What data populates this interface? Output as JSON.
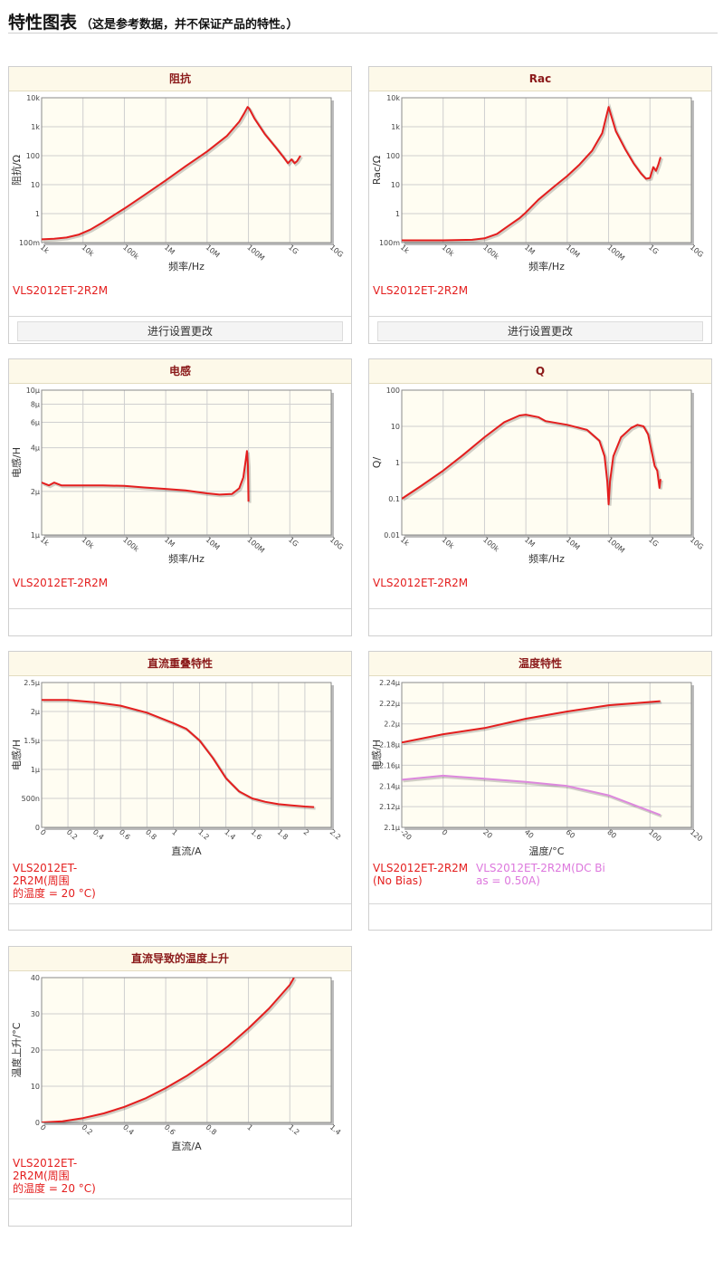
{
  "page": {
    "title": "特性图表",
    "subtitle": "（这是参考数据，并不保证产品的特性。）",
    "settings_label": "进行设置更改"
  },
  "colors": {
    "series_red": "#e41e1e",
    "series_pink": "#dd88dd",
    "plot_bg": "#fffdf2",
    "panel_title": "#8b1a1a",
    "panel_title_bg": "#fdf9e9"
  },
  "chart_data": [
    {
      "id": "impedance",
      "type": "line",
      "title": "阻抗",
      "xlabel": "频率/Hz",
      "ylabel": "阻抗/Ω",
      "x_scale": "log",
      "y_scale": "log",
      "xlim": [
        1000,
        10000000000
      ],
      "ylim": [
        0.1,
        10000
      ],
      "x_ticks": [
        {
          "v": 1000,
          "label": "1k"
        },
        {
          "v": 10000,
          "label": "10k"
        },
        {
          "v": 100000,
          "label": "100k"
        },
        {
          "v": 1000000,
          "label": "1M"
        },
        {
          "v": 10000000,
          "label": "10M"
        },
        {
          "v": 100000000,
          "label": "100M"
        },
        {
          "v": 1000000000,
          "label": "1G"
        },
        {
          "v": 10000000000,
          "label": "10G"
        }
      ],
      "y_ticks": [
        {
          "v": 0.1,
          "label": "100m"
        },
        {
          "v": 1,
          "label": "1"
        },
        {
          "v": 10,
          "label": "10"
        },
        {
          "v": 100,
          "label": "100"
        },
        {
          "v": 1000,
          "label": "1k"
        },
        {
          "v": 10000,
          "label": "10k"
        }
      ],
      "grid": true,
      "series": [
        {
          "name": "VLS2012ET-2R2M",
          "color": "#e41e1e",
          "x": [
            1000,
            2000,
            4000,
            8000,
            15000,
            30000,
            60000,
            100000,
            300000,
            1000000,
            3000000,
            10000000,
            30000000,
            60000000,
            80000000,
            95000000,
            105000000,
            140000000,
            250000000,
            450000000,
            700000000,
            900000000,
            1100000000,
            1300000000,
            1500000000,
            1800000000
          ],
          "y": [
            0.13,
            0.135,
            0.15,
            0.19,
            0.28,
            0.5,
            0.95,
            1.5,
            4.3,
            14,
            43,
            140,
            480,
            1500,
            3000,
            4800,
            4200,
            1900,
            550,
            200,
            90,
            55,
            75,
            55,
            65,
            100
          ]
        }
      ],
      "legend": [
        "VLS2012ET-2R2M"
      ],
      "has_settings": true
    },
    {
      "id": "rac",
      "type": "line",
      "title": "Rac",
      "xlabel": "频率/Hz",
      "ylabel": "Rac/Ω",
      "x_scale": "log",
      "y_scale": "log",
      "xlim": [
        1000,
        10000000000
      ],
      "ylim": [
        0.1,
        10000
      ],
      "x_ticks": [
        {
          "v": 1000,
          "label": "1k"
        },
        {
          "v": 10000,
          "label": "10k"
        },
        {
          "v": 100000,
          "label": "100k"
        },
        {
          "v": 1000000,
          "label": "1M"
        },
        {
          "v": 10000000,
          "label": "10M"
        },
        {
          "v": 100000000,
          "label": "100M"
        },
        {
          "v": 1000000000,
          "label": "1G"
        },
        {
          "v": 10000000000,
          "label": "10G"
        }
      ],
      "y_ticks": [
        {
          "v": 0.1,
          "label": "100m"
        },
        {
          "v": 1,
          "label": "1"
        },
        {
          "v": 10,
          "label": "10"
        },
        {
          "v": 100,
          "label": "100"
        },
        {
          "v": 1000,
          "label": "1k"
        },
        {
          "v": 10000,
          "label": "10k"
        }
      ],
      "grid": true,
      "series": [
        {
          "name": "VLS2012ET-2R2M",
          "color": "#e41e1e",
          "x": [
            1000,
            10000,
            50000,
            100000,
            200000,
            400000,
            700000,
            1000000,
            2000000,
            5000000,
            10000000,
            20000000,
            40000000,
            70000000,
            90000000,
            100000000,
            110000000,
            150000000,
            250000000,
            400000000,
            600000000,
            800000000,
            1000000000,
            1200000000,
            1400000000,
            1600000000,
            1800000000
          ],
          "y": [
            0.12,
            0.12,
            0.125,
            0.14,
            0.2,
            0.4,
            0.7,
            1.1,
            3,
            9,
            20,
            50,
            150,
            600,
            2600,
            4800,
            3000,
            700,
            170,
            55,
            25,
            16,
            17,
            40,
            30,
            50,
            90
          ]
        }
      ],
      "legend": [
        "VLS2012ET-2R2M"
      ],
      "has_settings": true
    },
    {
      "id": "inductance",
      "type": "line",
      "title": "电感",
      "xlabel": "频率/Hz",
      "ylabel": "电感/H",
      "x_scale": "log",
      "y_scale": "log",
      "xlim": [
        1000,
        10000000000
      ],
      "ylim": [
        1e-06,
        1e-05
      ],
      "x_ticks": [
        {
          "v": 1000,
          "label": "1k"
        },
        {
          "v": 10000,
          "label": "10k"
        },
        {
          "v": 100000,
          "label": "100k"
        },
        {
          "v": 1000000,
          "label": "1M"
        },
        {
          "v": 10000000,
          "label": "10M"
        },
        {
          "v": 100000000,
          "label": "100M"
        },
        {
          "v": 1000000000,
          "label": "1G"
        },
        {
          "v": 10000000000,
          "label": "10G"
        }
      ],
      "y_ticks": [
        {
          "v": 1e-06,
          "label": "1μ"
        },
        {
          "v": 2e-06,
          "label": "2μ"
        },
        {
          "v": 4e-06,
          "label": "4μ"
        },
        {
          "v": 6e-06,
          "label": "6μ"
        },
        {
          "v": 8e-06,
          "label": "8μ"
        },
        {
          "v": 1e-05,
          "label": "10μ"
        }
      ],
      "grid": true,
      "series": [
        {
          "name": "VLS2012ET-2R2M",
          "color": "#e41e1e",
          "x": [
            1000,
            1500,
            2000,
            3000,
            5000,
            10000,
            30000,
            100000,
            300000,
            1000000,
            3000000,
            10000000,
            20000000,
            40000000,
            60000000,
            75000000,
            85000000,
            92000000,
            97000000,
            100000000
          ],
          "y": [
            2.3e-06,
            2.2e-06,
            2.3e-06,
            2.2e-06,
            2.2e-06,
            2.2e-06,
            2.2e-06,
            2.18e-06,
            2.13e-06,
            2.08e-06,
            2.03e-06,
            1.94e-06,
            1.9e-06,
            1.92e-06,
            2.1e-06,
            2.5e-06,
            3.2e-06,
            3.8e-06,
            3e-06,
            1.7e-06
          ]
        }
      ],
      "legend": [
        "VLS2012ET-2R2M"
      ],
      "has_settings": false
    },
    {
      "id": "q",
      "type": "line",
      "title": "Q",
      "xlabel": "频率/Hz",
      "ylabel": "Q/",
      "x_scale": "log",
      "y_scale": "log",
      "xlim": [
        1000,
        10000000000
      ],
      "ylim": [
        0.01,
        100
      ],
      "x_ticks": [
        {
          "v": 1000,
          "label": "1k"
        },
        {
          "v": 10000,
          "label": "10k"
        },
        {
          "v": 100000,
          "label": "100k"
        },
        {
          "v": 1000000,
          "label": "1M"
        },
        {
          "v": 10000000,
          "label": "10M"
        },
        {
          "v": 100000000,
          "label": "100M"
        },
        {
          "v": 1000000000,
          "label": "1G"
        },
        {
          "v": 10000000000,
          "label": "10G"
        }
      ],
      "y_ticks": [
        {
          "v": 0.01,
          "label": "0.01"
        },
        {
          "v": 0.1,
          "label": "0.1"
        },
        {
          "v": 1,
          "label": "1"
        },
        {
          "v": 10,
          "label": "10"
        },
        {
          "v": 100,
          "label": "100"
        }
      ],
      "grid": true,
      "series": [
        {
          "name": "VLS2012ET-2R2M",
          "color": "#e41e1e",
          "x": [
            1000,
            3000,
            10000,
            30000,
            100000,
            300000,
            700000,
            1000000,
            2000000,
            3000000,
            10000000,
            30000000,
            60000000,
            80000000,
            93000000,
            100000000,
            108000000,
            130000000,
            200000000,
            350000000,
            500000000,
            700000000,
            900000000,
            1100000000,
            1300000000,
            1500000000,
            1700000000,
            1800000000
          ],
          "y": [
            0.1,
            0.23,
            0.6,
            1.6,
            5,
            13,
            20,
            21,
            18,
            14,
            11,
            8,
            4,
            1.5,
            0.3,
            0.07,
            0.3,
            1.5,
            5,
            9,
            11,
            10,
            6,
            2,
            0.8,
            0.6,
            0.2,
            0.35
          ]
        }
      ],
      "legend": [
        "VLS2012ET-2R2M"
      ],
      "has_settings": false
    },
    {
      "id": "dc_bias",
      "type": "line",
      "title": "直流重叠特性",
      "xlabel": "直流/A",
      "ylabel": "电感/H",
      "x_scale": "linear",
      "y_scale": "linear",
      "xlim": [
        0,
        2.2
      ],
      "ylim": [
        0,
        2.5e-06
      ],
      "x_ticks": [
        {
          "v": 0,
          "label": "0"
        },
        {
          "v": 0.2,
          "label": "0.2"
        },
        {
          "v": 0.4,
          "label": "0.4"
        },
        {
          "v": 0.6,
          "label": "0.6"
        },
        {
          "v": 0.8,
          "label": "0.8"
        },
        {
          "v": 1,
          "label": "1"
        },
        {
          "v": 1.2,
          "label": "1.2"
        },
        {
          "v": 1.4,
          "label": "1.4"
        },
        {
          "v": 1.6,
          "label": "1.6"
        },
        {
          "v": 1.8,
          "label": "1.8"
        },
        {
          "v": 2,
          "label": "2"
        },
        {
          "v": 2.2,
          "label": "2.2"
        }
      ],
      "y_ticks": [
        {
          "v": 0,
          "label": "0"
        },
        {
          "v": 5e-07,
          "label": "500n"
        },
        {
          "v": 1e-06,
          "label": "1μ"
        },
        {
          "v": 1.5e-06,
          "label": "1.5μ"
        },
        {
          "v": 2e-06,
          "label": "2μ"
        },
        {
          "v": 2.5e-06,
          "label": "2.5μ"
        }
      ],
      "grid": true,
      "series": [
        {
          "name": "VLS2012ET-2R2M(周围的温度 = 20 °C)",
          "color": "#e41e1e",
          "x": [
            0,
            0.2,
            0.4,
            0.6,
            0.8,
            1,
            1.1,
            1.2,
            1.3,
            1.4,
            1.5,
            1.6,
            1.7,
            1.8,
            1.9,
            2.0,
            2.07
          ],
          "y": [
            2.2e-06,
            2.2e-06,
            2.16e-06,
            2.1e-06,
            1.98e-06,
            1.8e-06,
            1.7e-06,
            1.5e-06,
            1.2e-06,
            8.5e-07,
            6.2e-07,
            5e-07,
            4.4e-07,
            4e-07,
            3.8e-07,
            3.6e-07,
            3.5e-07
          ]
        }
      ],
      "legend": [
        "VLS2012ET-2R2M(周围的温度 = 20 °C)"
      ],
      "has_settings": false
    },
    {
      "id": "temperature",
      "type": "line",
      "title": "温度特性",
      "xlabel": "温度/°C",
      "ylabel": "电感/H",
      "x_scale": "linear",
      "y_scale": "linear",
      "xlim": [
        -20,
        120
      ],
      "ylim": [
        2.1e-06,
        2.24e-06
      ],
      "x_ticks": [
        {
          "v": -20,
          "label": "-20"
        },
        {
          "v": 0,
          "label": "0"
        },
        {
          "v": 20,
          "label": "20"
        },
        {
          "v": 40,
          "label": "40"
        },
        {
          "v": 60,
          "label": "60"
        },
        {
          "v": 80,
          "label": "80"
        },
        {
          "v": 100,
          "label": "100"
        },
        {
          "v": 120,
          "label": "120"
        }
      ],
      "y_ticks": [
        {
          "v": 2.1e-06,
          "label": "2.1μ"
        },
        {
          "v": 2.12e-06,
          "label": "2.12μ"
        },
        {
          "v": 2.14e-06,
          "label": "2.14μ"
        },
        {
          "v": 2.16e-06,
          "label": "2.16μ"
        },
        {
          "v": 2.18e-06,
          "label": "2.18μ"
        },
        {
          "v": 2.2e-06,
          "label": "2.2μ"
        },
        {
          "v": 2.22e-06,
          "label": "2.22μ"
        },
        {
          "v": 2.24e-06,
          "label": "2.24μ"
        }
      ],
      "grid": true,
      "series": [
        {
          "name": "VLS2012ET-2R2M(No Bias)",
          "color": "#e41e1e",
          "x": [
            -20,
            0,
            20,
            40,
            60,
            80,
            105
          ],
          "y": [
            2.182e-06,
            2.19e-06,
            2.196e-06,
            2.205e-06,
            2.212e-06,
            2.218e-06,
            2.222e-06
          ]
        },
        {
          "name": "VLS2012ET-2R2M(DC Bias = 0.50A)",
          "color": "#dd88dd",
          "x": [
            -20,
            0,
            20,
            40,
            60,
            80,
            105
          ],
          "y": [
            2.146e-06,
            2.15e-06,
            2.147e-06,
            2.144e-06,
            2.14e-06,
            2.131e-06,
            2.112e-06
          ]
        }
      ],
      "legend": [
        "VLS2012ET-2R2M(No Bias)",
        "VLS2012ET-2R2M(DC Bias = 0.50A)"
      ],
      "has_settings": false
    },
    {
      "id": "temp_rise",
      "type": "line",
      "title": "直流导致的温度上升",
      "xlabel": "直流/A",
      "ylabel": "温度上升/°C",
      "x_scale": "linear",
      "y_scale": "linear",
      "xlim": [
        0,
        1.4
      ],
      "ylim": [
        0,
        40
      ],
      "x_ticks": [
        {
          "v": 0,
          "label": "0"
        },
        {
          "v": 0.2,
          "label": "0.2"
        },
        {
          "v": 0.4,
          "label": "0.4"
        },
        {
          "v": 0.6,
          "label": "0.6"
        },
        {
          "v": 0.8,
          "label": "0.8"
        },
        {
          "v": 1,
          "label": "1"
        },
        {
          "v": 1.2,
          "label": "1.2"
        },
        {
          "v": 1.4,
          "label": "1.4"
        }
      ],
      "y_ticks": [
        {
          "v": 0,
          "label": "0"
        },
        {
          "v": 10,
          "label": "10"
        },
        {
          "v": 20,
          "label": "20"
        },
        {
          "v": 30,
          "label": "30"
        },
        {
          "v": 40,
          "label": "40"
        }
      ],
      "grid": true,
      "series": [
        {
          "name": "VLS2012ET-2R2M(周围的温度 = 20 °C)",
          "color": "#e41e1e",
          "x": [
            0,
            0.1,
            0.2,
            0.3,
            0.4,
            0.5,
            0.6,
            0.7,
            0.8,
            0.9,
            1.0,
            1.1,
            1.2,
            1.22
          ],
          "y": [
            0,
            0.3,
            1.2,
            2.5,
            4.3,
            6.6,
            9.5,
            12.8,
            16.7,
            21,
            26,
            31.5,
            38,
            40
          ]
        }
      ],
      "legend": [
        "VLS2012ET-2R2M(周围的温度 = 20 °C)"
      ],
      "has_settings": false
    }
  ]
}
